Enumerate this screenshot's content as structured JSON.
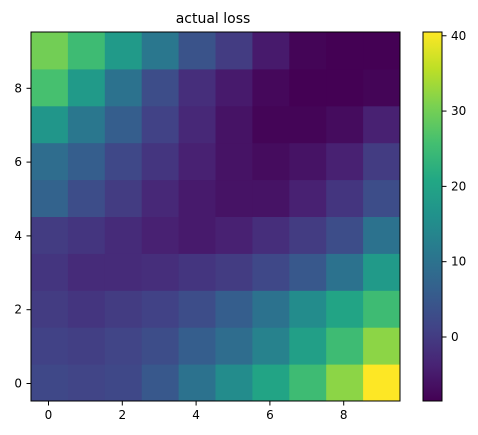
{
  "chart_data": {
    "type": "heatmap",
    "title": "actual loss",
    "xlabel": "",
    "ylabel": "",
    "origin": "lower",
    "colormap": "viridis",
    "vmin": -8.5,
    "vmax": 40.5,
    "xlim": [
      -0.5,
      9.5
    ],
    "ylim": [
      -0.5,
      9.5
    ],
    "x_ticks": [
      "0",
      "2",
      "4",
      "6",
      "8"
    ],
    "y_ticks": [
      "0",
      "2",
      "4",
      "6",
      "8"
    ],
    "colorbar_ticks": [
      "0",
      "10",
      "20",
      "30",
      "40"
    ],
    "grid": false,
    "values": [
      [
        2,
        1.5,
        2,
        5,
        10,
        15,
        20,
        25,
        32,
        40.5
      ],
      [
        1,
        0.5,
        1.5,
        3,
        6,
        9,
        13,
        19,
        25,
        32
      ],
      [
        0,
        -1,
        0,
        1,
        3,
        6,
        10,
        15,
        20,
        25
      ],
      [
        -1,
        -2.5,
        -2.5,
        -2,
        -1,
        0,
        2,
        5,
        10,
        18
      ],
      [
        0,
        -1,
        -2.5,
        -4,
        -5,
        -4,
        -2,
        0,
        3,
        10
      ],
      [
        7,
        3,
        0,
        -3,
        -5,
        -6,
        -6,
        -4,
        -1,
        3
      ],
      [
        9,
        6,
        2,
        -1,
        -4,
        -6,
        -7,
        -6,
        -4,
        0
      ],
      [
        17,
        11,
        6,
        1,
        -3,
        -6,
        -8,
        -8,
        -7,
        -4
      ],
      [
        26,
        18,
        10,
        3,
        -2,
        -5,
        -7.5,
        -8.5,
        -8.5,
        -8
      ],
      [
        30,
        25,
        18,
        11,
        4,
        0,
        -5,
        -8,
        -8.5,
        -8.5
      ]
    ]
  }
}
